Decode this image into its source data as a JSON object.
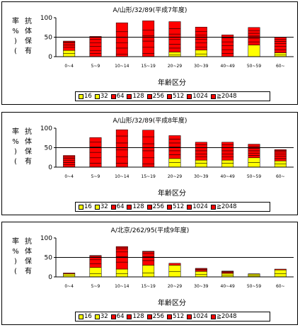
{
  "legend": {
    "items": [
      {
        "label": "16",
        "color": "#ffff00"
      },
      {
        "label": "32",
        "color": "#ffff00"
      },
      {
        "label": "64",
        "color": "#ff0000"
      },
      {
        "label": "128",
        "color": "#ff0000"
      },
      {
        "label": "256",
        "color": "#ff0000"
      },
      {
        "label": "512",
        "color": "#ff0000"
      },
      {
        "label": "1024",
        "color": "#ff0000"
      },
      {
        "label": "≧2048",
        "color": "#ff0000"
      }
    ]
  },
  "chart_data": [
    {
      "type": "bar",
      "title": "A/山形/32/89(平成7年度)",
      "ylabel": "抗体保有率(%)",
      "xlabel": "年齢区分",
      "categories": [
        "0~4",
        "5~9",
        "10~14",
        "15~19",
        "20~29",
        "30~39",
        "40~49",
        "50~59",
        "60~"
      ],
      "ylim": [
        0,
        100
      ],
      "yticks": [
        0,
        50,
        100
      ],
      "reference_line": 50,
      "series": [
        {
          "name": "16",
          "values": [
            8,
            0,
            0,
            0,
            5,
            7,
            0,
            0,
            5
          ]
        },
        {
          "name": "32",
          "values": [
            8,
            0,
            0,
            0,
            7,
            10,
            0,
            30,
            5
          ]
        },
        {
          "name": "64",
          "values": [
            8,
            8,
            6,
            8,
            10,
            8,
            8,
            8,
            8
          ]
        },
        {
          "name": "128",
          "values": [
            6,
            8,
            16,
            16,
            10,
            10,
            10,
            8,
            8
          ]
        },
        {
          "name": "256",
          "values": [
            5,
            10,
            14,
            16,
            12,
            10,
            10,
            7,
            8
          ]
        },
        {
          "name": "512",
          "values": [
            3,
            10,
            14,
            14,
            14,
            10,
            10,
            7,
            5
          ]
        },
        {
          "name": "1024",
          "values": [
            2,
            8,
            14,
            14,
            14,
            10,
            10,
            7,
            5
          ]
        },
        {
          "name": "≧2048",
          "values": [
            0,
            8,
            23,
            24,
            18,
            11,
            8,
            8,
            6
          ]
        }
      ]
    },
    {
      "type": "bar",
      "title": "A/山形/32/89(平成8年度)",
      "ylabel": "抗体保有率(%)",
      "xlabel": "年齢区分",
      "categories": [
        "0~4",
        "5~9",
        "10~14",
        "15~19",
        "20~29",
        "30~39",
        "40~49",
        "50~59",
        "60~"
      ],
      "ylim": [
        0,
        100
      ],
      "yticks": [
        0,
        50,
        100
      ],
      "reference_line": 50,
      "series": [
        {
          "name": "16",
          "values": [
            0,
            0,
            0,
            0,
            12,
            10,
            10,
            12,
            8
          ]
        },
        {
          "name": "32",
          "values": [
            0,
            0,
            0,
            0,
            10,
            8,
            8,
            12,
            8
          ]
        },
        {
          "name": "64",
          "values": [
            6,
            10,
            10,
            8,
            10,
            8,
            8,
            6,
            6
          ]
        },
        {
          "name": "128",
          "values": [
            6,
            14,
            16,
            16,
            10,
            8,
            8,
            6,
            6
          ]
        },
        {
          "name": "256",
          "values": [
            6,
            14,
            18,
            18,
            10,
            8,
            8,
            6,
            6
          ]
        },
        {
          "name": "512",
          "values": [
            5,
            14,
            18,
            18,
            10,
            8,
            8,
            6,
            5
          ]
        },
        {
          "name": "1024",
          "values": [
            4,
            12,
            18,
            18,
            10,
            8,
            8,
            6,
            4
          ]
        },
        {
          "name": "≧2048",
          "values": [
            3,
            12,
            16,
            17,
            9,
            6,
            6,
            5,
            2
          ]
        }
      ]
    },
    {
      "type": "bar",
      "title": "A/北京/262/95(平成9年度)",
      "ylabel": "抗体保有率(%)",
      "xlabel": "年齢区分",
      "categories": [
        "0~4",
        "5~9",
        "10~14",
        "15~19",
        "20~29",
        "30~39",
        "40~49",
        "50~59",
        "60~"
      ],
      "ylim": [
        0,
        100
      ],
      "yticks": [
        0,
        50,
        100
      ],
      "reference_line": 50,
      "series": [
        {
          "name": "16",
          "values": [
            5,
            8,
            8,
            10,
            14,
            6,
            4,
            3,
            8
          ]
        },
        {
          "name": "32",
          "values": [
            3,
            16,
            12,
            20,
            16,
            8,
            5,
            4,
            10
          ]
        },
        {
          "name": "64",
          "values": [
            2,
            10,
            18,
            12,
            5,
            4,
            3,
            1,
            2
          ]
        },
        {
          "name": "128",
          "values": [
            0,
            10,
            14,
            10,
            0,
            2,
            2,
            0,
            0
          ]
        },
        {
          "name": "256",
          "values": [
            0,
            6,
            12,
            8,
            0,
            2,
            1,
            0,
            0
          ]
        },
        {
          "name": "512",
          "values": [
            0,
            3,
            8,
            4,
            0,
            0,
            0,
            0,
            0
          ]
        },
        {
          "name": "1024",
          "values": [
            0,
            2,
            4,
            2,
            0,
            0,
            0,
            0,
            0
          ]
        },
        {
          "name": "≧2048",
          "values": [
            0,
            0,
            2,
            0,
            0,
            0,
            0,
            0,
            0
          ]
        }
      ]
    }
  ]
}
